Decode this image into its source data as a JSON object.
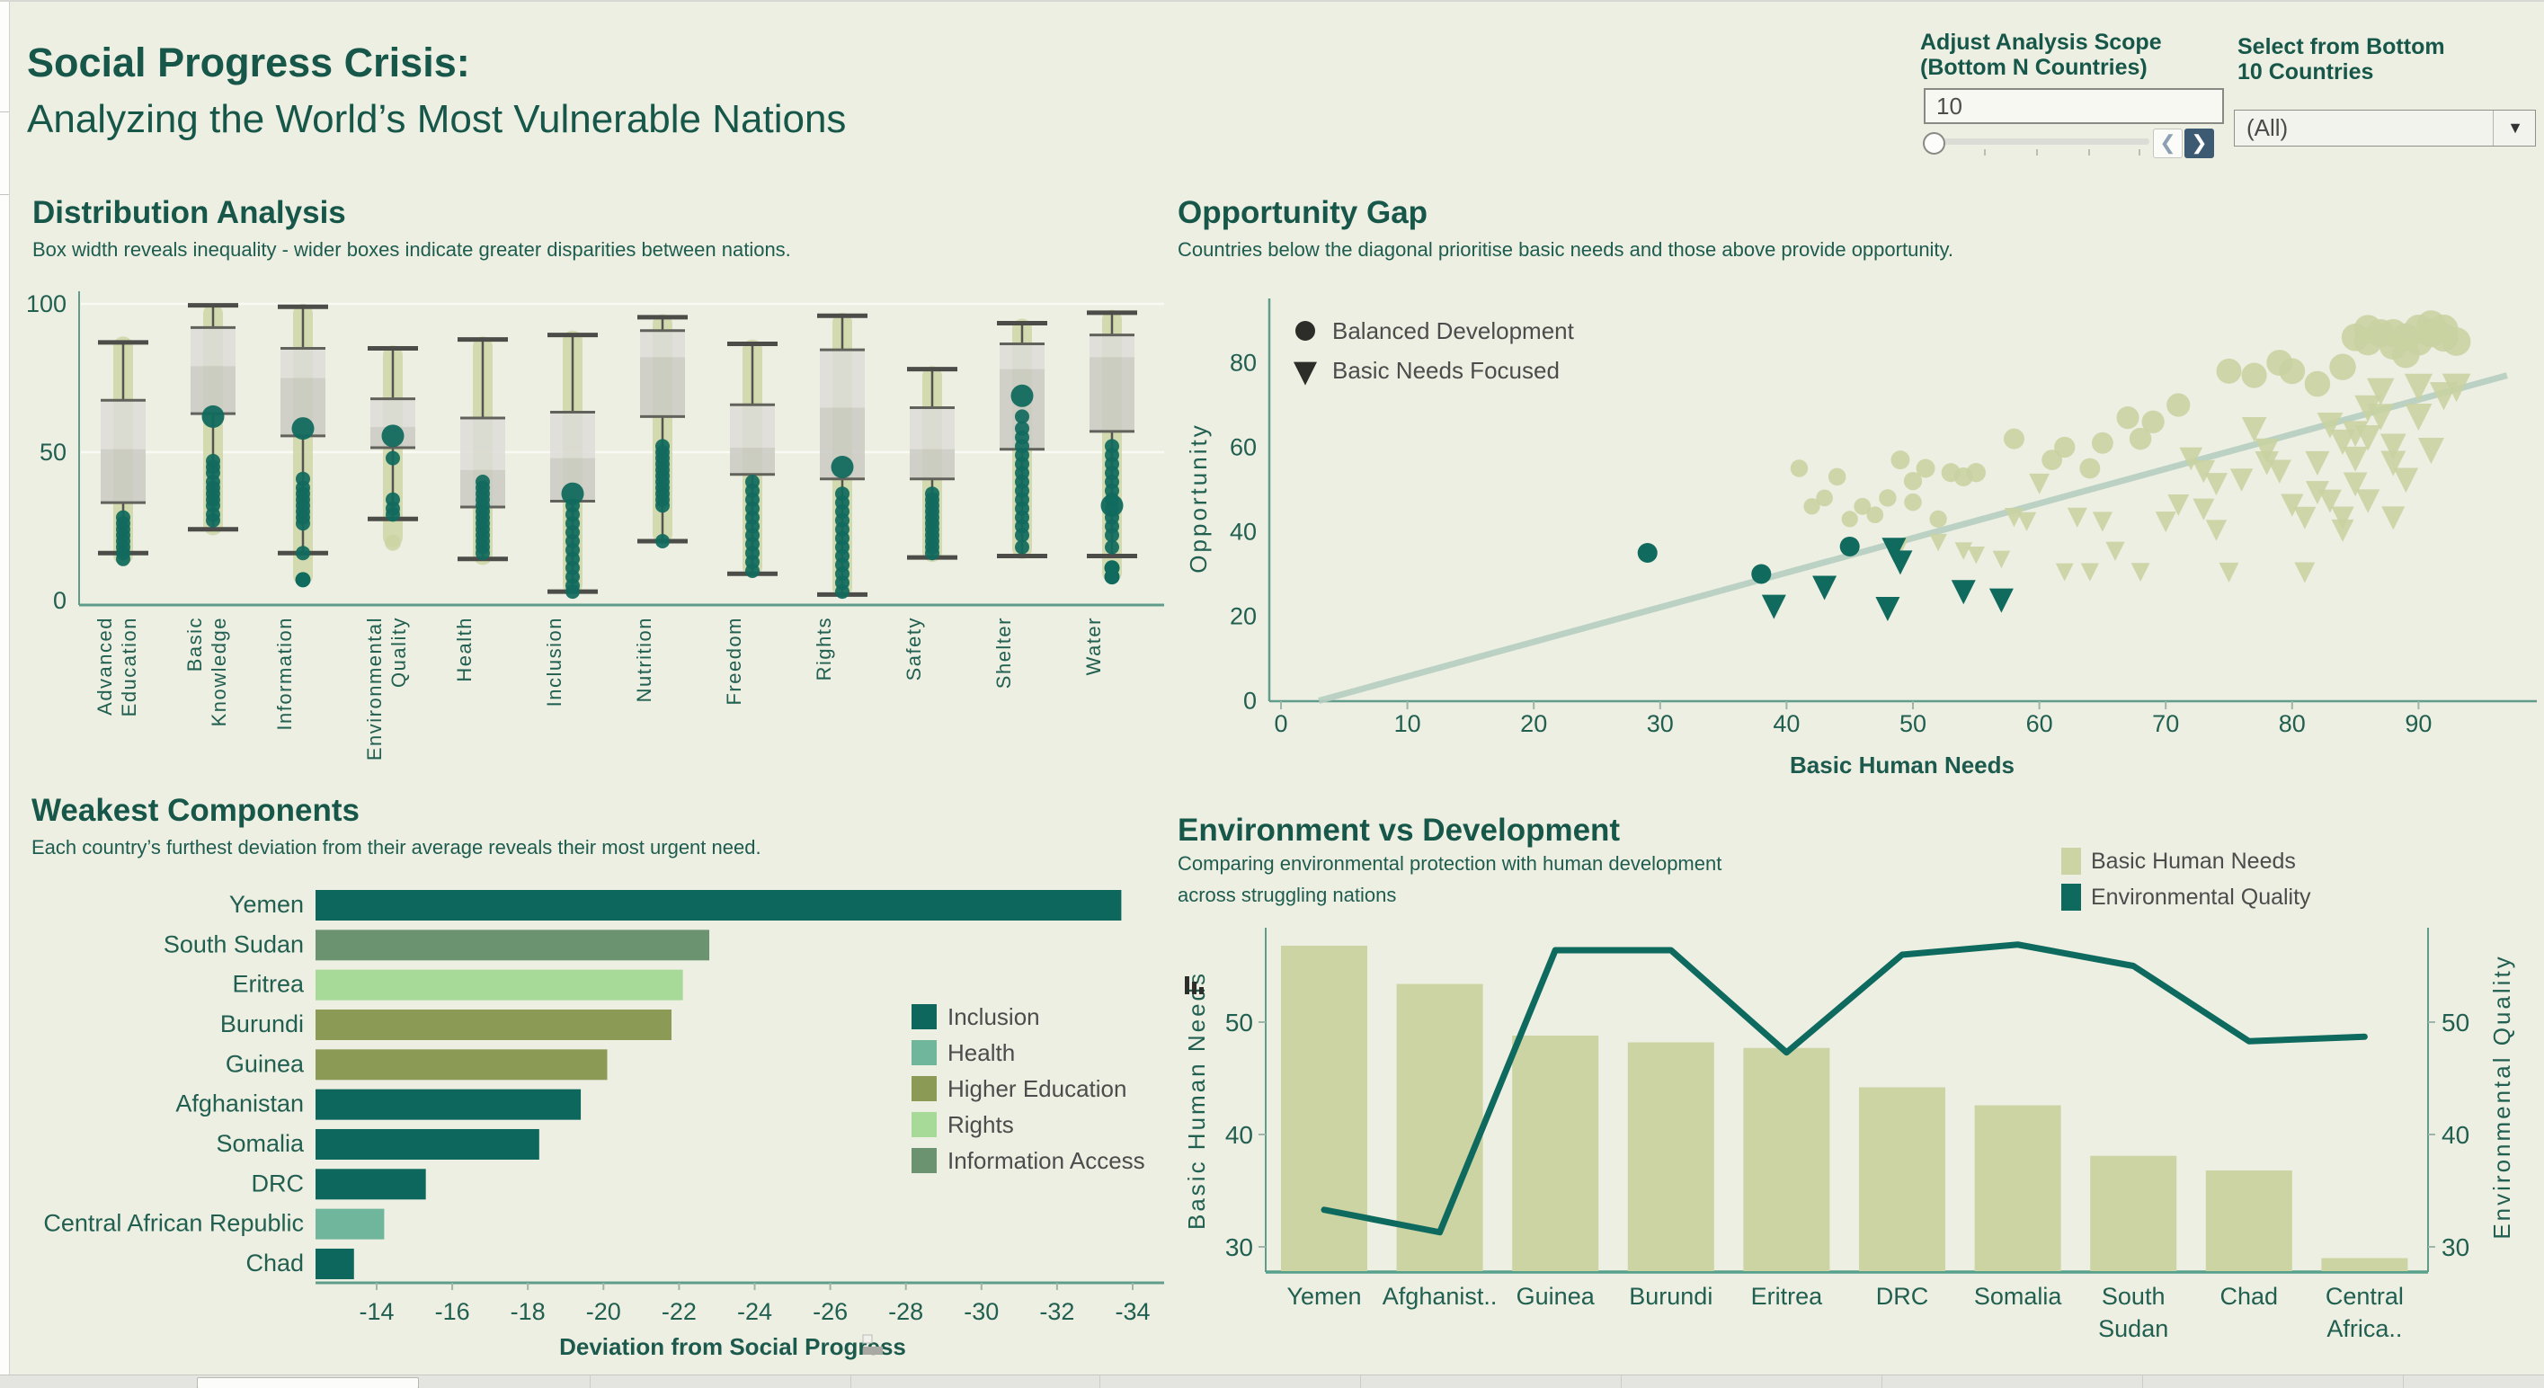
{
  "header": {
    "title_line1": "Social Progress Crisis:",
    "title_line2": "Analyzing the World’s Most Vulnerable Nations"
  },
  "controls": {
    "scope": {
      "label_line1": "Adjust Analysis Scope",
      "label_line2": "(Bottom N Countries)",
      "value": "10",
      "prev_label": "❮",
      "next_label": "❯"
    },
    "country_filter": {
      "label_line1": "Select from Bottom",
      "label_line2": "10 Countries",
      "value": "(All)",
      "arrow": "▼"
    }
  },
  "colors": {
    "background": "#edefe2",
    "title": "#17574a",
    "axis_text": "#215f51",
    "teal": "#116a5e",
    "olive": "#ccd4a3",
    "scatter_olive": "#c8d2a0",
    "legend_text": "#4c4c4c",
    "diagonal": "#b5cec1",
    "axis_line": "#5f9c8b",
    "box_upper": "#dddcd8",
    "box_lower": "#c9c9c3",
    "components": {
      "Inclusion": "#0d675d",
      "Health": "#6fb69c",
      "Higher Education": "#8b9b56",
      "Rights": "#a7d998",
      "Information Access": "#6b9370"
    }
  },
  "chart_data": [
    {
      "id": "distribution",
      "type": "box",
      "title": "Distribution Analysis",
      "subtitle": "Box width reveals inequality - wider boxes indicate greater disparities between nations.",
      "ylim": [
        0,
        100
      ],
      "y_ticks": [
        0,
        50,
        100
      ],
      "categories": [
        {
          "label": "Advanced Education",
          "label_lines": [
            "Advanced",
            "Education"
          ],
          "low": 16,
          "q1": 33,
          "median": 51,
          "q3": 67.5,
          "high": 87,
          "strip": [
            12,
            89
          ],
          "dots": [
            28,
            26,
            24,
            22,
            20,
            18,
            16,
            14
          ]
        },
        {
          "label": "Basic Knowledge",
          "label_lines": [
            "Basic",
            "Knowledge"
          ],
          "low": 24,
          "q1": 63,
          "median": 79,
          "q3": 92,
          "high": 99.5,
          "strip": [
            22,
            100
          ],
          "big_dot": 62,
          "dots": [
            47,
            45,
            43,
            40,
            38,
            36,
            34,
            32,
            29,
            27
          ]
        },
        {
          "label": "Information",
          "label_lines": [
            "Information"
          ],
          "low": 16,
          "q1": 55.5,
          "median": 75,
          "q3": 85,
          "high": 99,
          "strip": [
            5,
            100
          ],
          "big_dot": 58,
          "dots": [
            41,
            38,
            36,
            34,
            32,
            30,
            28,
            26,
            16
          ],
          "outlier_dots": [
            7
          ]
        },
        {
          "label": "Environmental Quality",
          "label_lines": [
            "Environmental",
            "Quality"
          ],
          "low": 27.5,
          "q1": 51.5,
          "median": 58.5,
          "q3": 68,
          "high": 85,
          "strip": [
            18,
            86
          ],
          "big_dot": 55.5,
          "dots": [
            48,
            34,
            31,
            29
          ],
          "olive_outliers": [
            19.5
          ]
        },
        {
          "label": "Health",
          "label_lines": [
            "Health"
          ],
          "low": 14,
          "q1": 31.5,
          "median": 44,
          "q3": 61.5,
          "high": 88,
          "strip": [
            12,
            89
          ],
          "dots": [
            40,
            38,
            36,
            34,
            32,
            30,
            28,
            26,
            24,
            22,
            20,
            18,
            16
          ]
        },
        {
          "label": "Inclusion",
          "label_lines": [
            "Inclusion"
          ],
          "low": 3,
          "q1": 33.5,
          "median": 48,
          "q3": 63.5,
          "high": 89.5,
          "strip": [
            2,
            91
          ],
          "big_dot": 36,
          "dots": [
            32,
            29,
            26,
            23,
            20,
            17,
            14,
            11,
            8,
            5,
            3
          ]
        },
        {
          "label": "Nutrition",
          "label_lines": [
            "Nutrition"
          ],
          "low": 20,
          "q1": 62,
          "median": 82,
          "q3": 91,
          "high": 95.5,
          "strip": [
            19,
            96.5
          ],
          "dots": [
            52,
            50,
            48,
            46,
            44,
            42,
            40,
            38,
            36,
            34,
            32,
            20
          ]
        },
        {
          "label": "Freedom",
          "label_lines": [
            "Freedom"
          ],
          "low": 9,
          "q1": 42.5,
          "median": 51.5,
          "q3": 66,
          "high": 86.5,
          "strip": [
            8,
            88
          ],
          "dots": [
            40,
            37,
            34,
            31,
            28,
            25,
            22,
            19,
            16,
            13,
            10
          ]
        },
        {
          "label": "Rights",
          "label_lines": [
            "Rights"
          ],
          "low": 2,
          "q1": 41,
          "median": 65,
          "q3": 84.5,
          "high": 96,
          "strip": [
            1,
            97
          ],
          "big_dot": 45,
          "dots": [
            36,
            33,
            30,
            27,
            24,
            21,
            18,
            15,
            12,
            9,
            6,
            3
          ]
        },
        {
          "label": "Safety",
          "label_lines": [
            "Safety"
          ],
          "low": 14.5,
          "q1": 41,
          "median": 51,
          "q3": 65,
          "high": 78,
          "strip": [
            13,
            79
          ],
          "dots": [
            36,
            34,
            32,
            30,
            28,
            26,
            24,
            22,
            20,
            18,
            16
          ]
        },
        {
          "label": "Shelter",
          "label_lines": [
            "Shelter"
          ],
          "low": 15,
          "q1": 51,
          "median": 78,
          "q3": 86.5,
          "high": 93.5,
          "strip": [
            14,
            95
          ],
          "big_dot": 69,
          "dots": [
            62,
            58,
            55,
            52,
            49,
            46,
            43,
            40,
            37,
            34,
            31,
            28,
            25,
            22,
            18
          ]
        },
        {
          "label": "Water",
          "label_lines": [
            "Water"
          ],
          "low": 15,
          "q1": 57,
          "median": 82,
          "q3": 89.5,
          "high": 97,
          "strip": [
            6,
            98
          ],
          "big_dot": 32,
          "dots": [
            52,
            49,
            46,
            43,
            40,
            37,
            34,
            31,
            28,
            25,
            22,
            18
          ],
          "outlier_dots": [
            11,
            8
          ]
        }
      ]
    },
    {
      "id": "opportunity",
      "type": "scatter",
      "title": "Opportunity Gap",
      "subtitle": "Countries below the diagonal prioritise basic needs and those above provide opportunity.",
      "xlabel": "Basic Human Needs",
      "ylabel": "Opportunity",
      "x_ticks": [
        0,
        10,
        20,
        30,
        40,
        50,
        60,
        70,
        80,
        90
      ],
      "y_ticks": [
        0,
        20,
        40,
        60,
        80
      ],
      "xlim": [
        0,
        98
      ],
      "ylim": [
        0,
        95
      ],
      "legend": [
        {
          "marker": "circle",
          "label": "Balanced Development"
        },
        {
          "marker": "triangle-down",
          "label": "Basic Needs Focused"
        }
      ],
      "diagonal": {
        "from": [
          3,
          0
        ],
        "to": [
          97,
          77
        ]
      },
      "series": [
        {
          "name": "base-circles",
          "marker": "circle",
          "role": "all-countries",
          "points": [
            [
              41,
              55
            ],
            [
              44,
              53
            ],
            [
              43,
              48
            ],
            [
              42,
              46
            ],
            [
              46,
              46
            ],
            [
              47,
              44
            ],
            [
              45,
              43
            ],
            [
              48,
              48
            ],
            [
              50,
              47
            ],
            [
              51,
              55
            ],
            [
              53,
              54
            ],
            [
              54,
              53
            ],
            [
              52,
              43
            ],
            [
              55,
              54
            ],
            [
              49,
              57
            ],
            [
              50,
              52
            ],
            [
              58,
              62
            ],
            [
              61,
              57
            ],
            [
              62,
              60
            ],
            [
              64,
              55
            ],
            [
              65,
              61
            ],
            [
              67,
              67
            ],
            [
              69,
              66
            ],
            [
              68,
              62
            ],
            [
              71,
              70
            ],
            [
              75,
              78
            ],
            [
              77,
              77
            ],
            [
              79,
              80
            ],
            [
              80,
              78
            ],
            [
              82,
              75
            ],
            [
              84,
              79
            ],
            [
              85,
              86
            ],
            [
              86,
              85
            ],
            [
              86,
              88
            ],
            [
              87,
              87
            ],
            [
              88,
              84
            ],
            [
              88,
              87
            ],
            [
              89,
              86
            ],
            [
              90,
              88
            ],
            [
              90,
              85
            ],
            [
              91,
              87
            ],
            [
              91,
              89
            ],
            [
              92,
              86
            ],
            [
              89,
              82
            ],
            [
              92,
              88
            ],
            [
              93,
              85
            ]
          ]
        },
        {
          "name": "base-triangles",
          "marker": "triangle-down",
          "role": "all-countries",
          "points": [
            [
              49,
              37
            ],
            [
              52,
              38
            ],
            [
              54,
              36
            ],
            [
              55,
              35
            ],
            [
              57,
              34
            ],
            [
              58,
              44
            ],
            [
              59,
              43
            ],
            [
              60,
              52
            ],
            [
              62,
              31
            ],
            [
              63,
              44
            ],
            [
              64,
              31
            ],
            [
              65,
              43
            ],
            [
              66,
              36
            ],
            [
              68,
              31
            ],
            [
              70,
              43
            ],
            [
              71,
              47
            ],
            [
              72,
              58
            ],
            [
              73,
              46
            ],
            [
              73,
              55
            ],
            [
              74,
              52
            ],
            [
              74,
              41
            ],
            [
              75,
              31
            ],
            [
              76,
              53
            ],
            [
              77,
              65
            ],
            [
              78,
              60
            ],
            [
              78,
              57
            ],
            [
              79,
              55
            ],
            [
              80,
              47
            ],
            [
              81,
              31
            ],
            [
              81,
              44
            ],
            [
              82,
              50
            ],
            [
              82,
              57
            ],
            [
              83,
              48
            ],
            [
              84,
              62
            ],
            [
              84,
              44
            ],
            [
              85,
              58
            ],
            [
              85,
              52
            ],
            [
              86,
              70
            ],
            [
              86,
              63
            ],
            [
              87,
              74
            ],
            [
              87,
              68
            ],
            [
              88,
              57
            ],
            [
              89,
              53
            ],
            [
              90,
              75
            ],
            [
              92,
              73
            ],
            [
              93,
              75
            ],
            [
              88,
              44
            ],
            [
              84,
              41
            ],
            [
              86,
              48
            ],
            [
              91,
              60
            ],
            [
              88,
              61
            ],
            [
              85,
              64
            ],
            [
              83,
              66
            ],
            [
              90,
              68
            ]
          ]
        },
        {
          "name": "highlight-circles",
          "marker": "circle",
          "role": "bottom-10",
          "points": [
            [
              29,
              35
            ],
            [
              38,
              30
            ],
            [
              45,
              36.5
            ]
          ]
        },
        {
          "name": "highlight-triangles",
          "marker": "triangle-down",
          "role": "bottom-10",
          "points": [
            [
              39,
              23
            ],
            [
              43,
              27.5
            ],
            [
              48,
              22.5
            ],
            [
              48.5,
              36.5
            ],
            [
              49,
              33.5
            ],
            [
              54,
              26.5
            ],
            [
              57,
              24.5
            ]
          ]
        }
      ]
    },
    {
      "id": "weakest",
      "type": "bar",
      "title": "Weakest Components",
      "subtitle": "Each country’s furthest deviation from their average reveals their most urgent need.",
      "xlabel": "Deviation from Social Progress",
      "x_ticks": [
        -14,
        -16,
        -18,
        -20,
        -22,
        -24,
        -26,
        -28,
        -30,
        -32,
        -34
      ],
      "axis_start": -12.4,
      "rows": [
        {
          "country": "Yemen",
          "value": -33.7,
          "component": "Inclusion"
        },
        {
          "country": "South Sudan",
          "value": -22.8,
          "component": "Information Access"
        },
        {
          "country": "Eritrea",
          "value": -22.1,
          "component": "Rights"
        },
        {
          "country": "Burundi",
          "value": -21.8,
          "component": "Higher Education"
        },
        {
          "country": "Guinea",
          "value": -20.1,
          "component": "Higher Education"
        },
        {
          "country": "Afghanistan",
          "value": -19.4,
          "component": "Inclusion"
        },
        {
          "country": "Somalia",
          "value": -18.3,
          "component": "Inclusion"
        },
        {
          "country": "DRC",
          "value": -15.3,
          "component": "Inclusion"
        },
        {
          "country": "Central African Republic",
          "value": -14.2,
          "component": "Health"
        },
        {
          "country": "Chad",
          "value": -13.4,
          "component": "Inclusion"
        }
      ],
      "legend": [
        "Inclusion",
        "Health",
        "Higher Education",
        "Rights",
        "Information Access"
      ]
    },
    {
      "id": "environment",
      "type": "bar+line",
      "title": "Environment vs Development",
      "subtitle_line1": "Comparing environmental protection with human development",
      "subtitle_line2": "across struggling nations",
      "categories": [
        "Yemen",
        "Afghanist..",
        "Guinea",
        "Burundi",
        "Eritrea",
        "DRC",
        "Somalia",
        "South Sudan",
        "Chad",
        "Central Africa.."
      ],
      "category_lines": [
        [
          "Yemen"
        ],
        [
          "Afghanist.."
        ],
        [
          "Guinea"
        ],
        [
          "Burundi"
        ],
        [
          "Eritrea"
        ],
        [
          "DRC"
        ],
        [
          "Somalia"
        ],
        [
          "South",
          "Sudan"
        ],
        [
          "Chad"
        ],
        [
          "Central",
          "Africa.."
        ]
      ],
      "bar_series": {
        "name": "Basic Human Needs",
        "values": [
          56.8,
          53.4,
          48.8,
          48.2,
          47.7,
          44.2,
          42.6,
          38.1,
          36.8,
          29.0
        ]
      },
      "line_series": {
        "name": "Environmental Quality",
        "values": [
          33.3,
          31.3,
          56.4,
          56.4,
          47.3,
          56.0,
          56.9,
          55.0,
          48.3,
          48.7
        ]
      },
      "left_axis": {
        "label": "Basic Human Needs",
        "ticks": [
          30,
          40,
          50
        ]
      },
      "right_axis": {
        "label": "Environmental Quality",
        "ticks": [
          30,
          40,
          50
        ]
      },
      "ylim": [
        27.6,
        58
      ]
    }
  ]
}
